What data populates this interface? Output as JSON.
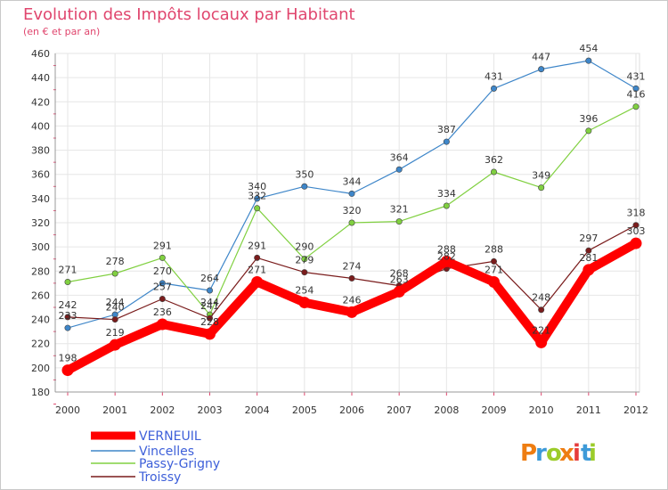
{
  "chart_data": {
    "type": "line",
    "title": "Evolution des Impôts locaux par Habitant",
    "subtitle": "(en € et par an)",
    "xlabel": "",
    "ylabel": "",
    "x": [
      "2000",
      "2001",
      "2002",
      "2003",
      "2004",
      "2005",
      "2006",
      "2007",
      "2008",
      "2009",
      "2010",
      "2011",
      "2012"
    ],
    "ylim": [
      180,
      460
    ],
    "yticks": [
      180,
      200,
      220,
      240,
      260,
      280,
      300,
      320,
      340,
      360,
      380,
      400,
      420,
      440,
      460
    ],
    "grid": true,
    "legend_position": "bottom-left",
    "series": [
      {
        "name": "VERNEUIL",
        "color": "#ff0000",
        "emphasis": true,
        "values": [
          198,
          219,
          236,
          228,
          271,
          254,
          246,
          263,
          288,
          271,
          221,
          281,
          303
        ]
      },
      {
        "name": "Vincelles",
        "color": "#3e86c9",
        "emphasis": false,
        "values": [
          233,
          244,
          270,
          264,
          340,
          350,
          344,
          364,
          387,
          431,
          447,
          454,
          431
        ]
      },
      {
        "name": "Passy-Grigny",
        "color": "#80d040",
        "emphasis": false,
        "values": [
          271,
          278,
          291,
          244,
          332,
          290,
          320,
          321,
          334,
          362,
          349,
          396,
          416
        ]
      },
      {
        "name": "Troissy",
        "color": "#7a1c1c",
        "emphasis": false,
        "values": [
          242,
          240,
          257,
          241,
          291,
          279,
          274,
          268,
          282,
          288,
          248,
          297,
          318
        ]
      }
    ]
  },
  "branding": {
    "logo_text": "Proxiti",
    "logo_colors": [
      "#ee7d11",
      "#3d9ad8",
      "#9ccc2a",
      "#ee7d11",
      "#e63c3c",
      "#3d9ad8",
      "#9ccc2a"
    ]
  }
}
